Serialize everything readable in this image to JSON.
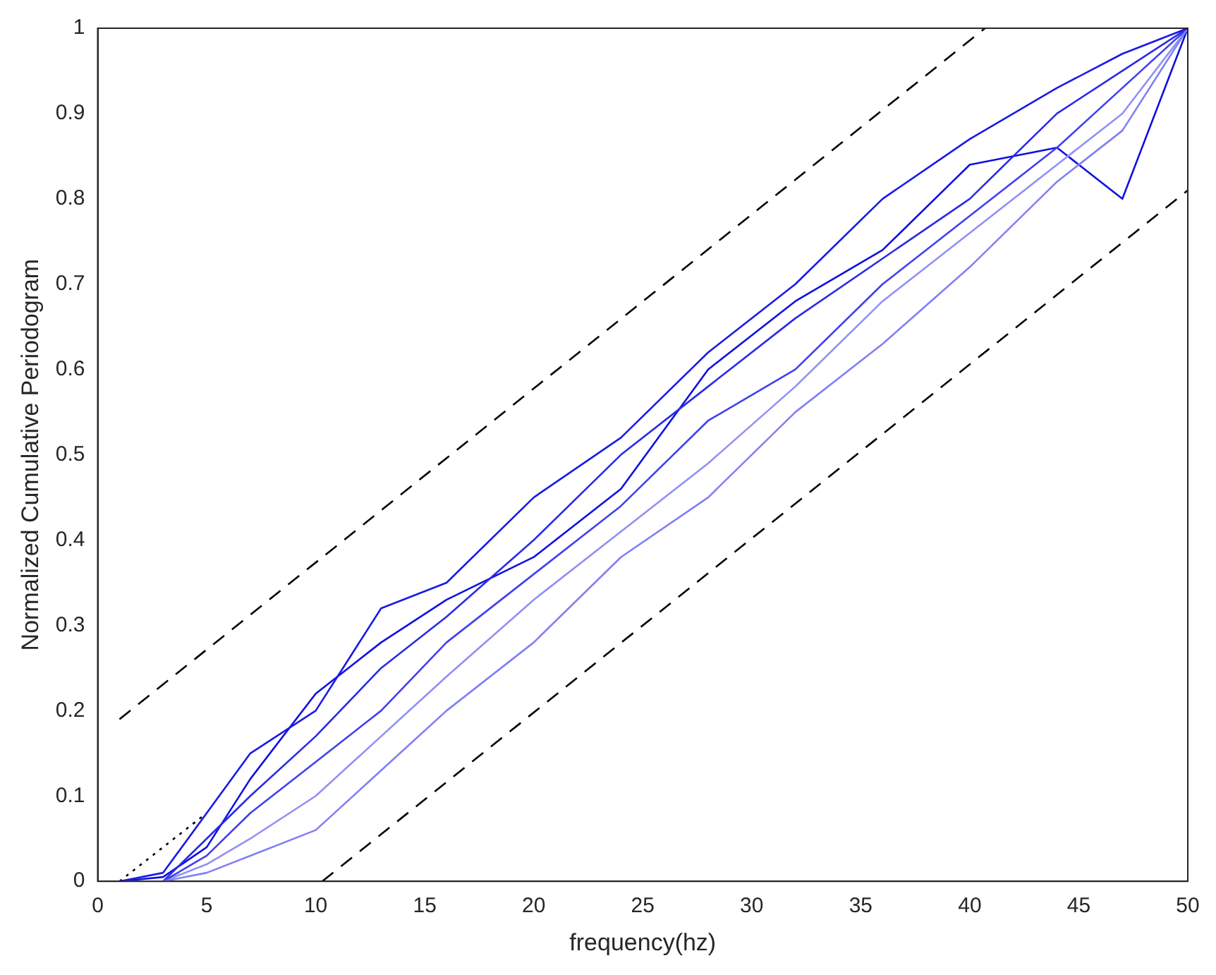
{
  "chart_data": {
    "type": "line",
    "xlabel": "frequency(hz)",
    "ylabel": "Normalized Cumulative Periodogram",
    "xlim": [
      0,
      50
    ],
    "ylim": [
      0,
      1
    ],
    "xticks": [
      0,
      5,
      10,
      15,
      20,
      25,
      30,
      35,
      40,
      45,
      50
    ],
    "yticks": [
      0,
      0.1,
      0.2,
      0.3,
      0.4,
      0.5,
      0.6,
      0.7,
      0.8,
      0.9,
      1
    ],
    "x": [
      1,
      3,
      5,
      7,
      10,
      13,
      16,
      20,
      24,
      28,
      32,
      36,
      40,
      44,
      47,
      50
    ],
    "grid": false,
    "legend": false,
    "marker": "none",
    "line_style": "solid",
    "series": [
      {
        "color": "#1a1ae6",
        "values": [
          0,
          0.01,
          0.08,
          0.15,
          0.2,
          0.32,
          0.35,
          0.45,
          0.52,
          0.62,
          0.7,
          0.8,
          0.87,
          0.93,
          0.97,
          1
        ]
      },
      {
        "color": "#8080f5",
        "values": [
          0,
          0,
          0.01,
          0.03,
          0.06,
          0.13,
          0.2,
          0.28,
          0.38,
          0.45,
          0.55,
          0.63,
          0.72,
          0.82,
          0.88,
          1
        ]
      },
      {
        "color": "#4040ee",
        "values": [
          0,
          0,
          0.03,
          0.08,
          0.14,
          0.2,
          0.28,
          0.36,
          0.44,
          0.54,
          0.6,
          0.7,
          0.78,
          0.86,
          0.93,
          1
        ]
      },
      {
        "color": "#2a2ae8",
        "values": [
          0,
          0,
          0.05,
          0.1,
          0.17,
          0.25,
          0.31,
          0.4,
          0.5,
          0.58,
          0.66,
          0.73,
          0.8,
          0.9,
          0.95,
          1
        ]
      },
      {
        "color": "#9090f5",
        "values": [
          0,
          0,
          0.02,
          0.05,
          0.1,
          0.17,
          0.24,
          0.33,
          0.41,
          0.49,
          0.58,
          0.68,
          0.76,
          0.84,
          0.9,
          1
        ]
      },
      {
        "color": "#1010e0",
        "values": [
          0,
          0.005,
          0.04,
          0.12,
          0.22,
          0.28,
          0.33,
          0.38,
          0.46,
          0.6,
          0.68,
          0.74,
          0.84,
          0.86,
          0.8,
          1
        ]
      },
      {
        "color": "#000000",
        "line_style": "dashed",
        "x": [
          1,
          40.7
        ],
        "values": [
          0.19,
          1
        ]
      },
      {
        "color": "#000000",
        "line_style": "dashed",
        "x": [
          10.3,
          50
        ],
        "values": [
          0,
          0.81
        ]
      },
      {
        "color": "#000000",
        "line_style": "dotted",
        "x": [
          1,
          5
        ],
        "values": [
          0,
          0.08
        ]
      }
    ]
  }
}
